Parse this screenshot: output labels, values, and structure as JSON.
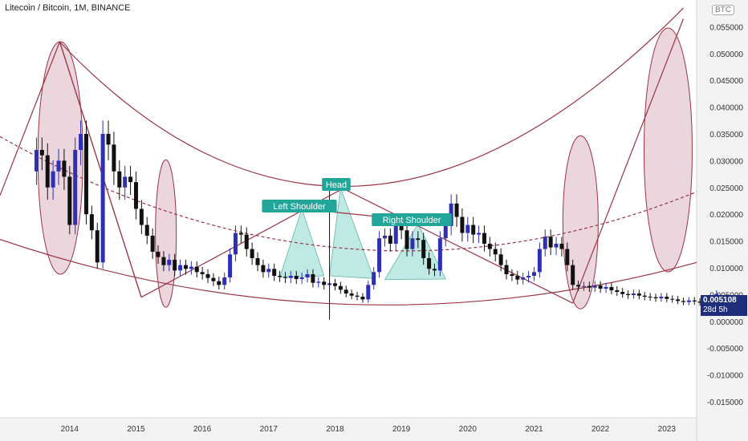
{
  "header": {
    "title": "Litecoin / Bitcoin, 1M, BINANCE",
    "currency_badge": "BTC"
  },
  "last_price": {
    "value": "0.005108",
    "countdown": "28d 5h"
  },
  "colors": {
    "up": "#2f2fb4",
    "down": "#111111",
    "trend": "#9a3344",
    "ellipse_fill": "#c98aa0",
    "pattern_fill": "#7fd3c8",
    "label_bg": "#23a69a",
    "axis_bg": "#f3f3f3"
  },
  "chart_data": {
    "type": "candlestick",
    "title": "Litecoin / Bitcoin, 1M, BINANCE",
    "y_axis": {
      "min": -0.018,
      "max": 0.06,
      "ticks": [
        "0.055000",
        "0.050000",
        "0.045000",
        "0.040000",
        "0.035000",
        "0.030000",
        "0.025000",
        "0.020000",
        "0.015000",
        "0.010000",
        "0.005000",
        "0.000000",
        "-0.005000",
        "-0.010000",
        "-0.015000"
      ],
      "tick_values": [
        0.055,
        0.05,
        0.045,
        0.04,
        0.035,
        0.03,
        0.025,
        0.02,
        0.015,
        0.01,
        0.005,
        0,
        -0.005,
        -0.01,
        -0.015
      ]
    },
    "x_axis": {
      "labels": [
        "2014",
        "2015",
        "2016",
        "2017",
        "2018",
        "2019",
        "2020",
        "2021",
        "2022",
        "2023"
      ],
      "label_years": [
        2014,
        2015,
        2016,
        2017,
        2018,
        2019,
        2020,
        2021,
        2022,
        2023
      ],
      "range": [
        2012.95,
        2023.45
      ]
    },
    "pattern_labels": [
      "Left Shoulder",
      "Head",
      "Right Shoulder"
    ],
    "closes": [
      0.032,
      0.031,
      0.025,
      0.028,
      0.03,
      0.027,
      0.018,
      0.032,
      0.035,
      0.02,
      0.017,
      0.011,
      0.035,
      0.033,
      0.028,
      0.025,
      0.027,
      0.026,
      0.021,
      0.018,
      0.016,
      0.013,
      0.012,
      0.0105,
      0.0115,
      0.0095,
      0.0105,
      0.0098,
      0.0102,
      0.0092,
      0.0088,
      0.0081,
      0.0075,
      0.0068,
      0.0082,
      0.0125,
      0.0165,
      0.0162,
      0.0135,
      0.0118,
      0.0105,
      0.0092,
      0.0098,
      0.0085,
      0.0083,
      0.0081,
      0.0085,
      0.0079,
      0.0082,
      0.0088,
      0.0072,
      0.0074,
      0.0068,
      0.0071,
      0.0066,
      0.0059,
      0.0052,
      0.0048,
      0.0046,
      0.0041,
      0.0068,
      0.0092,
      0.0155,
      0.016,
      0.0145,
      0.018,
      0.017,
      0.0135,
      0.0155,
      0.0152,
      0.0118,
      0.0098,
      0.0095,
      0.0155,
      0.0178,
      0.022,
      0.0195,
      0.0165,
      0.018,
      0.0162,
      0.0165,
      0.0145,
      0.0135,
      0.0125,
      0.0105,
      0.0088,
      0.0085,
      0.0078,
      0.0082,
      0.0085,
      0.0092,
      0.0135,
      0.0158,
      0.0138,
      0.0145,
      0.0135,
      0.0105,
      0.0068,
      0.0065,
      0.0066,
      0.0063,
      0.0067,
      0.0061,
      0.0064,
      0.0058,
      0.0055,
      0.0051,
      0.0049,
      0.0052,
      0.0048,
      0.0046,
      0.0045,
      0.0043,
      0.0046,
      0.0042,
      0.0041,
      0.0038,
      0.0036,
      0.0039,
      0.0037,
      0.0035,
      0.0033,
      0.0036,
      0.0051
    ]
  }
}
